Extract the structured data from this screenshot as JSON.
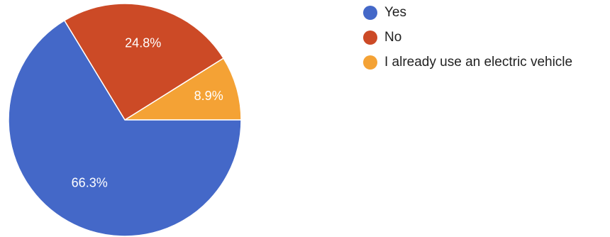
{
  "chart_data": {
    "type": "pie",
    "categories": [
      "Yes",
      "No",
      "I already use an electric vehicle"
    ],
    "values": [
      66.3,
      24.8,
      8.9
    ],
    "labels": [
      "66.3%",
      "24.8%",
      "8.9%"
    ],
    "colors": [
      "#4468c8",
      "#cc4a26",
      "#f4a235"
    ],
    "title": "",
    "legend": "right"
  }
}
